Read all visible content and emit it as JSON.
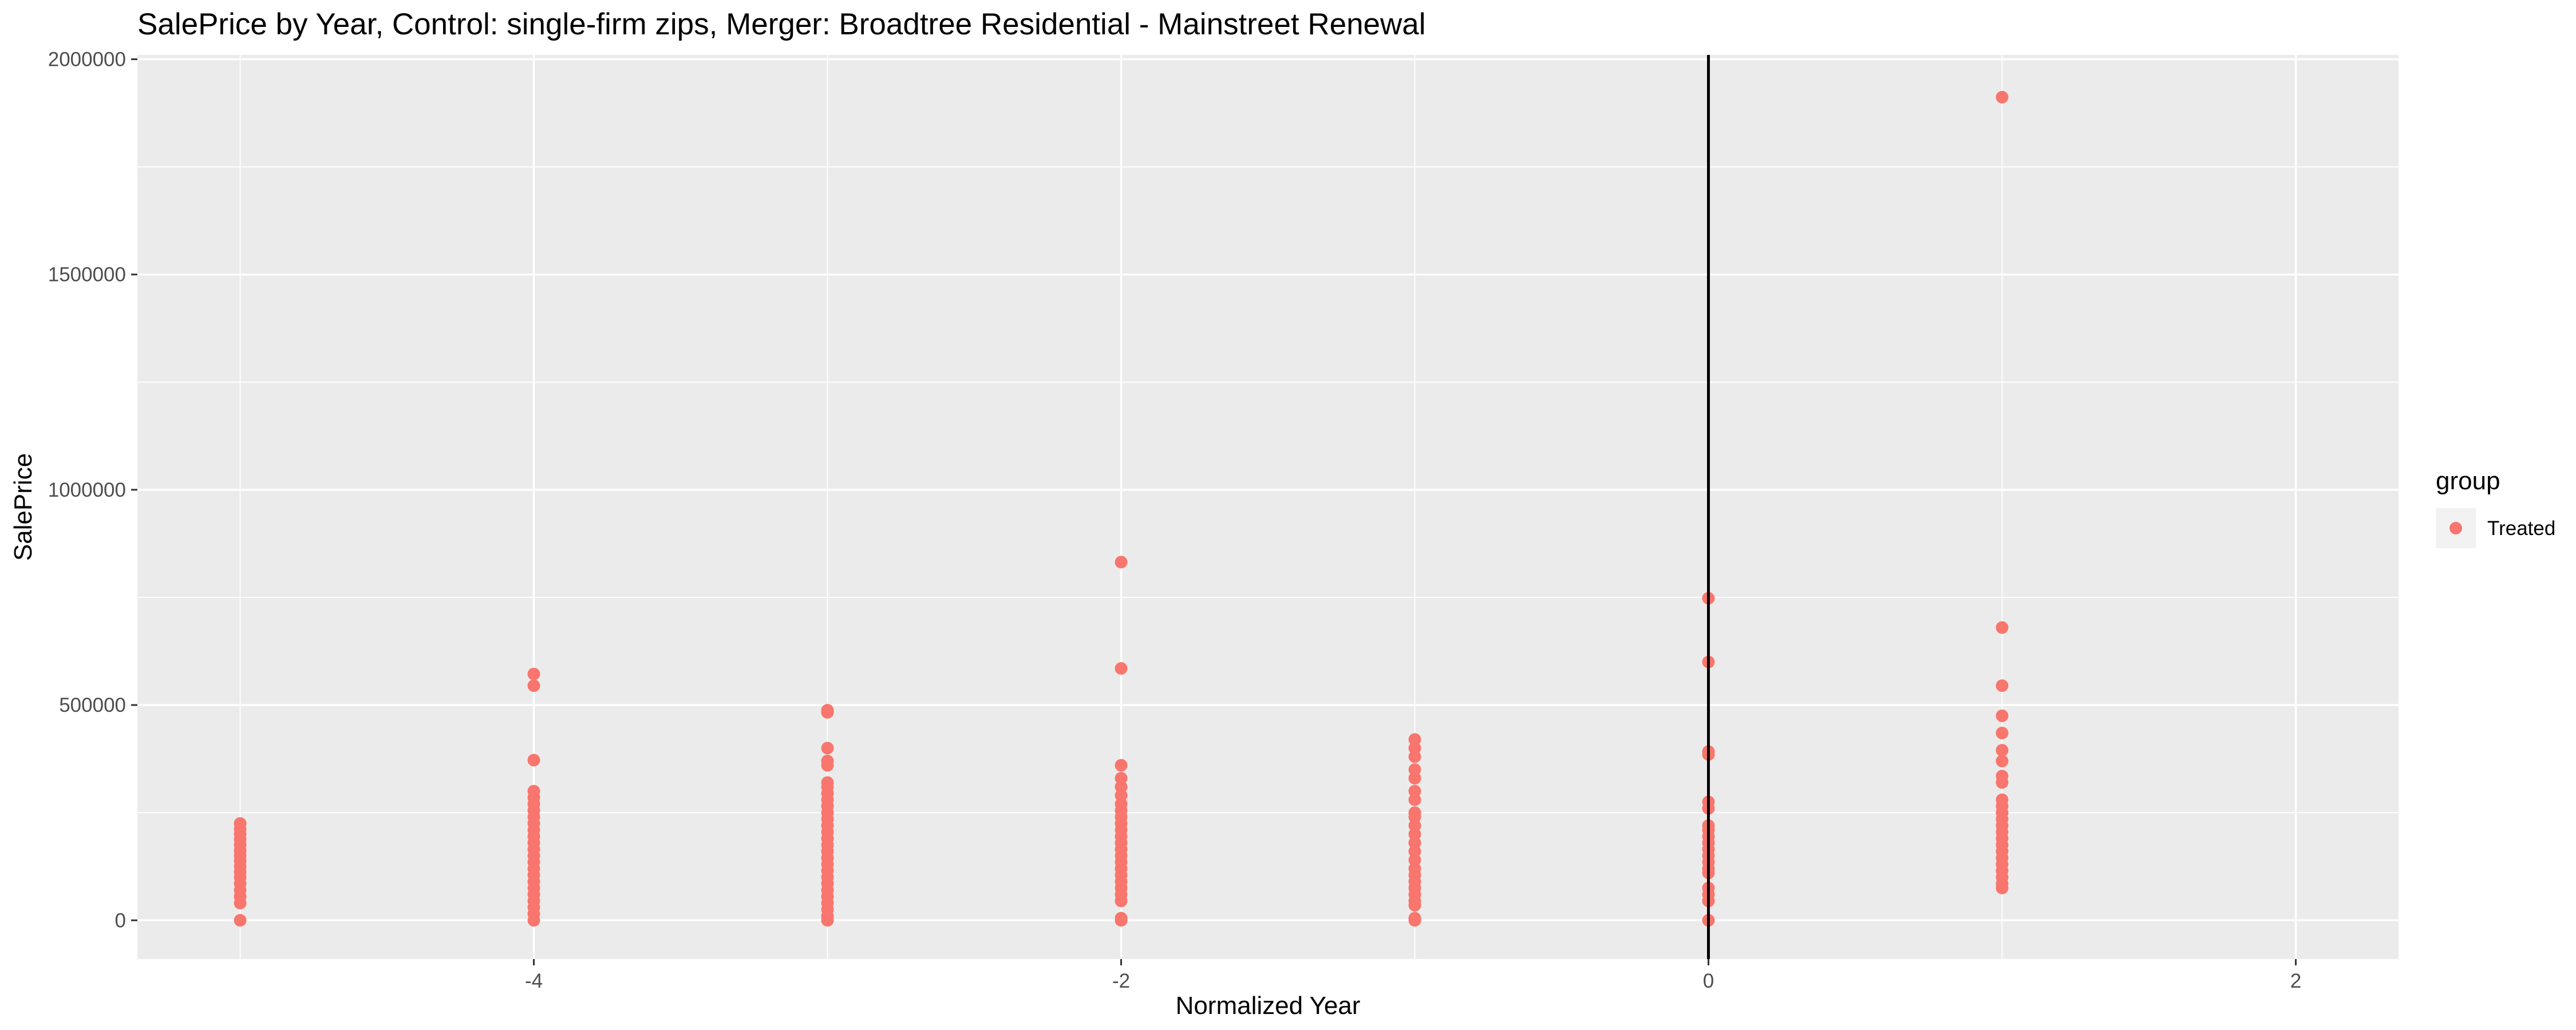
{
  "chart_data": {
    "type": "scatter",
    "title": "SalePrice by Year, Control: single-firm zips, Merger: Broadtree Residential - Mainstreet Renewal",
    "xlabel": "Normalized Year",
    "ylabel": "SalePrice",
    "xlim": [
      -5.35,
      2.35
    ],
    "ylim": [
      -90000,
      2010000
    ],
    "x_ticks": [
      -4,
      -2,
      0,
      2
    ],
    "x_tick_labels": [
      "-4",
      "-2",
      "0",
      "2"
    ],
    "y_ticks": [
      0,
      500000,
      1000000,
      1500000,
      2000000
    ],
    "y_tick_labels": [
      "0",
      "500000",
      "1000000",
      "1500000",
      "2000000"
    ],
    "x_minor_ticks": [
      -5,
      -3,
      -1,
      1
    ],
    "y_minor_ticks": [
      250000,
      750000,
      1250000,
      1750000
    ],
    "grid": true,
    "vline": 0,
    "vline_color": "#000000",
    "legend": {
      "title": "group",
      "position": "right",
      "entries": [
        {
          "label": "Treated",
          "color": "#F8766D"
        }
      ]
    },
    "series": [
      {
        "name": "Treated",
        "color": "#F8766D",
        "points": [
          [
            -5,
            0
          ],
          [
            -5,
            40000
          ],
          [
            -5,
            55000
          ],
          [
            -5,
            70000
          ],
          [
            -5,
            85000
          ],
          [
            -5,
            100000
          ],
          [
            -5,
            112000
          ],
          [
            -5,
            125000
          ],
          [
            -5,
            138000
          ],
          [
            -5,
            150000
          ],
          [
            -5,
            162000
          ],
          [
            -5,
            175000
          ],
          [
            -5,
            188000
          ],
          [
            -5,
            200000
          ],
          [
            -5,
            212000
          ],
          [
            -5,
            225000
          ],
          [
            -4,
            0
          ],
          [
            -4,
            15000
          ],
          [
            -4,
            30000
          ],
          [
            -4,
            45000
          ],
          [
            -4,
            60000
          ],
          [
            -4,
            75000
          ],
          [
            -4,
            90000
          ],
          [
            -4,
            105000
          ],
          [
            -4,
            120000
          ],
          [
            -4,
            135000
          ],
          [
            -4,
            150000
          ],
          [
            -4,
            165000
          ],
          [
            -4,
            180000
          ],
          [
            -4,
            195000
          ],
          [
            -4,
            210000
          ],
          [
            -4,
            225000
          ],
          [
            -4,
            240000
          ],
          [
            -4,
            255000
          ],
          [
            -4,
            270000
          ],
          [
            -4,
            285000
          ],
          [
            -4,
            300000
          ],
          [
            -4,
            372000
          ],
          [
            -4,
            545000
          ],
          [
            -4,
            572000
          ],
          [
            -3,
            0
          ],
          [
            -3,
            10000
          ],
          [
            -3,
            25000
          ],
          [
            -3,
            40000
          ],
          [
            -3,
            55000
          ],
          [
            -3,
            70000
          ],
          [
            -3,
            85000
          ],
          [
            -3,
            100000
          ],
          [
            -3,
            115000
          ],
          [
            -3,
            130000
          ],
          [
            -3,
            145000
          ],
          [
            -3,
            160000
          ],
          [
            -3,
            175000
          ],
          [
            -3,
            190000
          ],
          [
            -3,
            205000
          ],
          [
            -3,
            220000
          ],
          [
            -3,
            235000
          ],
          [
            -3,
            250000
          ],
          [
            -3,
            265000
          ],
          [
            -3,
            280000
          ],
          [
            -3,
            295000
          ],
          [
            -3,
            310000
          ],
          [
            -3,
            320000
          ],
          [
            -3,
            360000
          ],
          [
            -3,
            370000
          ],
          [
            -3,
            400000
          ],
          [
            -3,
            483000
          ],
          [
            -3,
            488000
          ],
          [
            -2,
            0
          ],
          [
            -2,
            5000
          ],
          [
            -2,
            45000
          ],
          [
            -2,
            60000
          ],
          [
            -2,
            75000
          ],
          [
            -2,
            90000
          ],
          [
            -2,
            105000
          ],
          [
            -2,
            120000
          ],
          [
            -2,
            135000
          ],
          [
            -2,
            150000
          ],
          [
            -2,
            165000
          ],
          [
            -2,
            180000
          ],
          [
            -2,
            195000
          ],
          [
            -2,
            210000
          ],
          [
            -2,
            225000
          ],
          [
            -2,
            240000
          ],
          [
            -2,
            255000
          ],
          [
            -2,
            270000
          ],
          [
            -2,
            290000
          ],
          [
            -2,
            310000
          ],
          [
            -2,
            330000
          ],
          [
            -2,
            360000
          ],
          [
            -2,
            585000
          ],
          [
            -2,
            832000
          ],
          [
            -1,
            0
          ],
          [
            -1,
            5000
          ],
          [
            -1,
            35000
          ],
          [
            -1,
            45000
          ],
          [
            -1,
            60000
          ],
          [
            -1,
            75000
          ],
          [
            -1,
            90000
          ],
          [
            -1,
            105000
          ],
          [
            -1,
            120000
          ],
          [
            -1,
            140000
          ],
          [
            -1,
            160000
          ],
          [
            -1,
            180000
          ],
          [
            -1,
            200000
          ],
          [
            -1,
            220000
          ],
          [
            -1,
            240000
          ],
          [
            -1,
            250000
          ],
          [
            -1,
            280000
          ],
          [
            -1,
            300000
          ],
          [
            -1,
            330000
          ],
          [
            -1,
            350000
          ],
          [
            -1,
            380000
          ],
          [
            -1,
            400000
          ],
          [
            -1,
            420000
          ],
          [
            0,
            0
          ],
          [
            0,
            45000
          ],
          [
            0,
            60000
          ],
          [
            0,
            75000
          ],
          [
            0,
            110000
          ],
          [
            0,
            120000
          ],
          [
            0,
            135000
          ],
          [
            0,
            150000
          ],
          [
            0,
            165000
          ],
          [
            0,
            180000
          ],
          [
            0,
            195000
          ],
          [
            0,
            210000
          ],
          [
            0,
            220000
          ],
          [
            0,
            260000
          ],
          [
            0,
            275000
          ],
          [
            0,
            385000
          ],
          [
            0,
            392000
          ],
          [
            0,
            600000
          ],
          [
            0,
            748000
          ],
          [
            1,
            75000
          ],
          [
            1,
            85000
          ],
          [
            1,
            100000
          ],
          [
            1,
            115000
          ],
          [
            1,
            130000
          ],
          [
            1,
            145000
          ],
          [
            1,
            160000
          ],
          [
            1,
            175000
          ],
          [
            1,
            190000
          ],
          [
            1,
            205000
          ],
          [
            1,
            220000
          ],
          [
            1,
            235000
          ],
          [
            1,
            250000
          ],
          [
            1,
            265000
          ],
          [
            1,
            280000
          ],
          [
            1,
            320000
          ],
          [
            1,
            335000
          ],
          [
            1,
            370000
          ],
          [
            1,
            395000
          ],
          [
            1,
            435000
          ],
          [
            1,
            475000
          ],
          [
            1,
            545000
          ],
          [
            1,
            680000
          ],
          [
            1,
            1912000
          ]
        ]
      }
    ]
  }
}
